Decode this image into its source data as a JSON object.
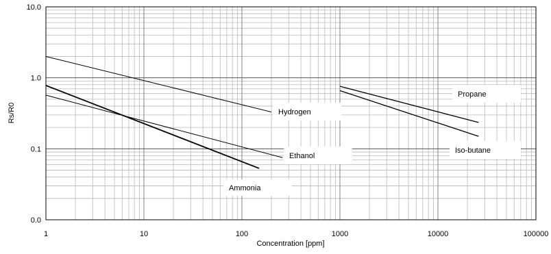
{
  "chart_data": {
    "type": "line",
    "xlabel": "Concentration [ppm]",
    "ylabel": "Rs/R0",
    "x_scale": "log",
    "y_scale": "log",
    "xlim": [
      1,
      100000
    ],
    "ylim": [
      0.01,
      10
    ],
    "grid": true,
    "x_ticks": [
      {
        "value": 1,
        "label": "1"
      },
      {
        "value": 10,
        "label": "10"
      },
      {
        "value": 100,
        "label": "100"
      },
      {
        "value": 1000,
        "label": "1000"
      },
      {
        "value": 10000,
        "label": "10000"
      },
      {
        "value": 100000,
        "label": "100000"
      }
    ],
    "y_ticks": [
      {
        "value": 0.01,
        "label": "0.0"
      },
      {
        "value": 0.1,
        "label": "0.1"
      },
      {
        "value": 1,
        "label": "1.0"
      },
      {
        "value": 10,
        "label": "10.0"
      }
    ],
    "series": [
      {
        "name": "Hydrogen",
        "x": [
          1,
          200
        ],
        "y": [
          2.0,
          0.33
        ],
        "color": "#000000"
      },
      {
        "name": "Ethanol",
        "x": [
          1,
          260
        ],
        "y": [
          0.57,
          0.075
        ],
        "color": "#000000"
      },
      {
        "name": "Ammonia",
        "x": [
          1,
          150
        ],
        "y": [
          0.78,
          0.053
        ],
        "color": "#000000"
      },
      {
        "name": "Propane",
        "x": [
          1000,
          26000
        ],
        "y": [
          0.76,
          0.235
        ],
        "color": "#000000"
      },
      {
        "name": "Iso-butane",
        "x": [
          1000,
          26000
        ],
        "y": [
          0.66,
          0.15
        ],
        "color": "#000000"
      }
    ]
  }
}
